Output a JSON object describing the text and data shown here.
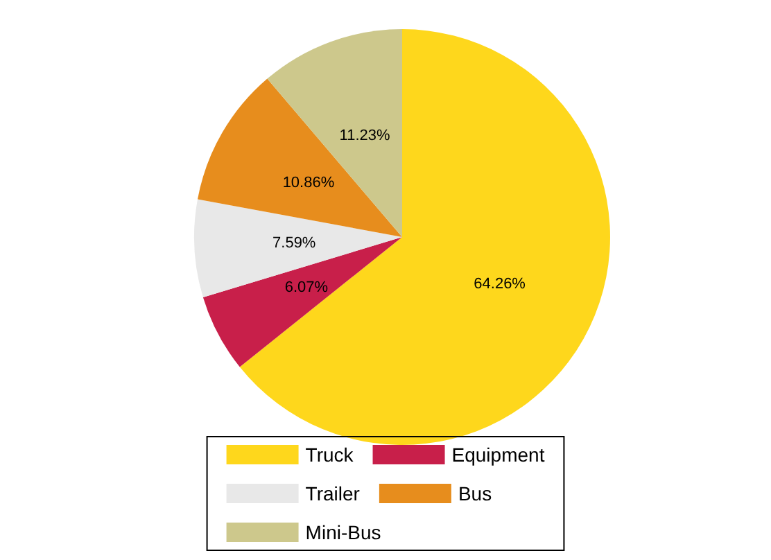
{
  "chart_data": {
    "type": "pie",
    "categories": [
      "Truck",
      "Equipment",
      "Trailer",
      "Bus",
      "Mini-Bus"
    ],
    "values": [
      64.26,
      6.07,
      7.59,
      10.86,
      11.23
    ],
    "value_labels": [
      "64.26%",
      "6.07%",
      "7.59%",
      "10.86%",
      "11.23%"
    ],
    "colors": [
      "#fed71c",
      "#c81f4a",
      "#e8e8e8",
      "#e78d1d",
      "#cdc88c"
    ],
    "legend": "bottom"
  }
}
